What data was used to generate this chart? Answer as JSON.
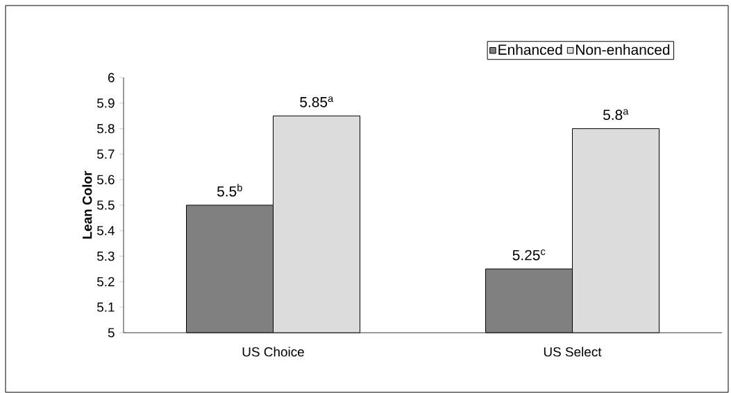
{
  "chart_data": {
    "type": "bar",
    "ylabel": "Lean Color",
    "categories": [
      "US Choice",
      "US Select"
    ],
    "series": [
      {
        "name": "Enhanced",
        "color": "#808080",
        "values": [
          5.5,
          5.25
        ],
        "value_labels": [
          "5.5$^{b}$",
          "5.25$^{c}$"
        ]
      },
      {
        "name": "Non-enhanced",
        "color": "#dcdcdc",
        "values": [
          5.85,
          5.8
        ],
        "value_labels": [
          "5.85$^{a}$",
          "5.8$^{a}$"
        ]
      }
    ],
    "ylim": [
      5,
      6
    ],
    "yticks": [
      5,
      5.1,
      5.2,
      5.3,
      5.4,
      5.5,
      5.6,
      5.7,
      5.8,
      5.9,
      6
    ],
    "legend": "top right",
    "grid": false
  }
}
